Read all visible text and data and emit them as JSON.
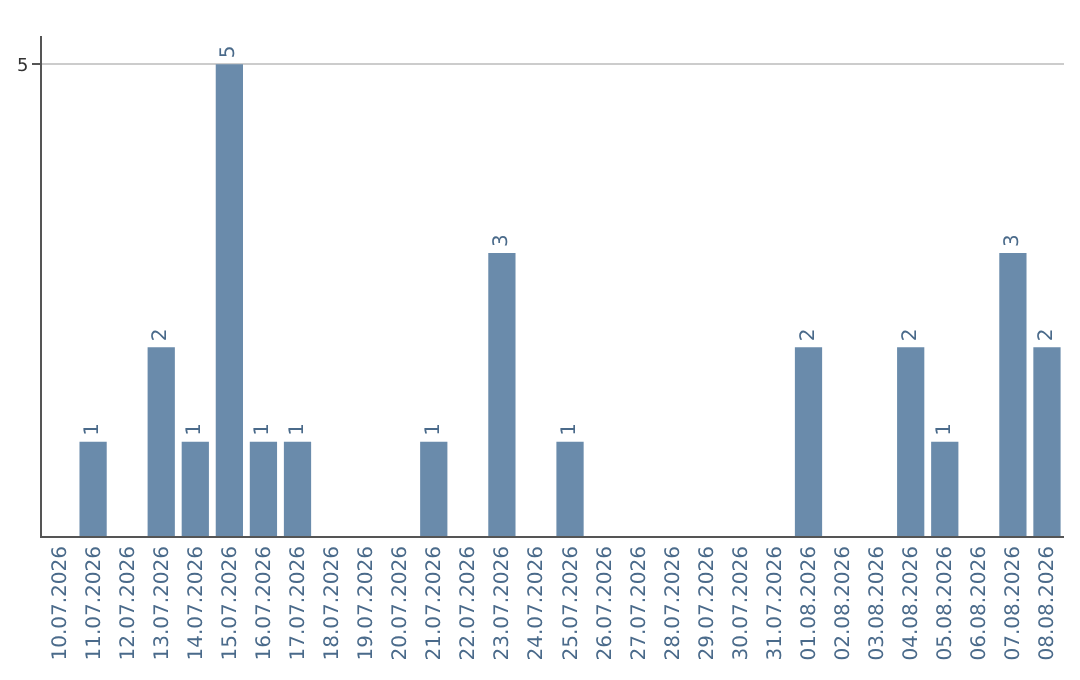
{
  "chart_data": {
    "type": "bar",
    "categories": [
      "10.07.2026",
      "11.07.2026",
      "12.07.2026",
      "13.07.2026",
      "14.07.2026",
      "15.07.2026",
      "16.07.2026",
      "17.07.2026",
      "18.07.2026",
      "19.07.2026",
      "20.07.2026",
      "21.07.2026",
      "22.07.2026",
      "23.07.2026",
      "24.07.2026",
      "25.07.2026",
      "26.07.2026",
      "27.07.2026",
      "28.07.2026",
      "29.07.2026",
      "30.07.2026",
      "31.07.2026",
      "01.08.2026",
      "02.08.2026",
      "03.08.2026",
      "04.08.2026",
      "05.08.2026",
      "06.08.2026",
      "07.08.2026",
      "08.08.2026"
    ],
    "values": [
      0,
      1,
      0,
      2,
      1,
      5,
      1,
      1,
      0,
      0,
      0,
      1,
      0,
      3,
      0,
      1,
      0,
      0,
      0,
      0,
      0,
      0,
      2,
      0,
      0,
      2,
      1,
      0,
      3,
      2
    ],
    "value_labels": [
      null,
      "1",
      null,
      "2",
      "1",
      "5",
      "1",
      "1",
      null,
      null,
      null,
      "1",
      null,
      "3",
      null,
      "1",
      null,
      null,
      null,
      null,
      null,
      null,
      "2",
      null,
      null,
      "2",
      "1",
      null,
      "3",
      "2"
    ],
    "color": "#6a8bab",
    "ylim": [
      0,
      5.3
    ],
    "yticks": [
      5
    ],
    "grid": "y",
    "legend": false
  }
}
